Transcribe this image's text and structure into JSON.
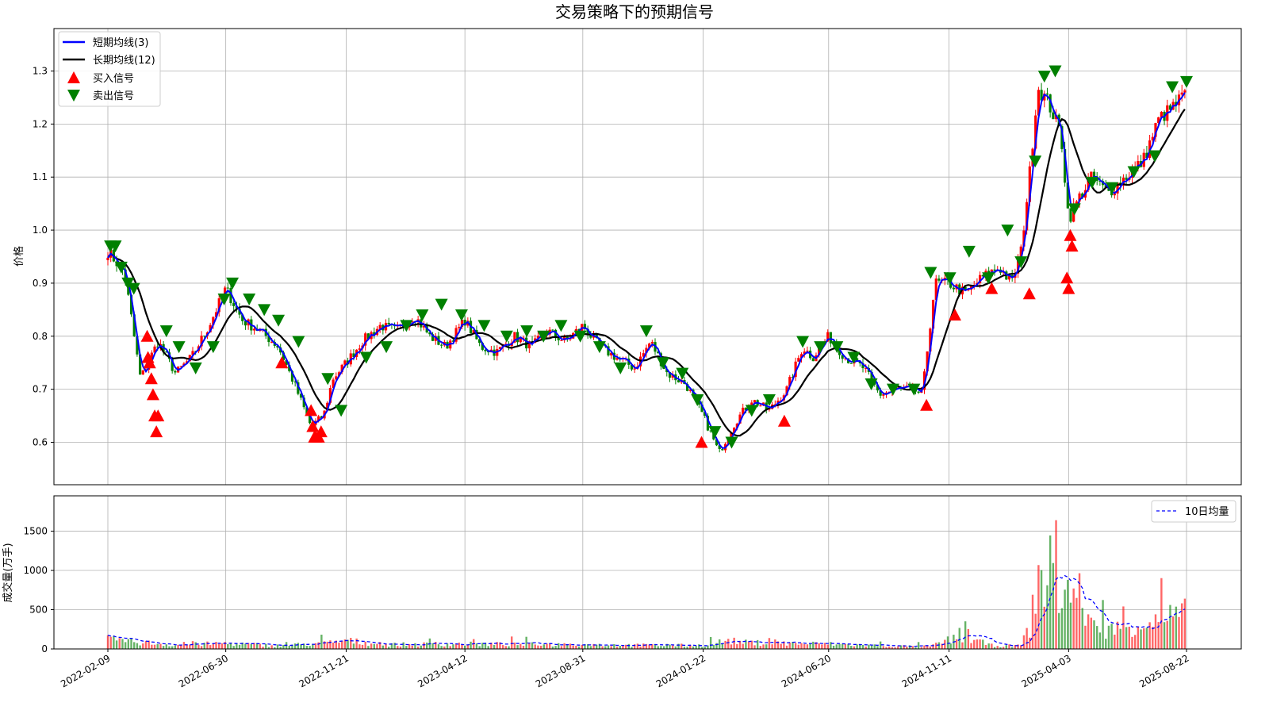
{
  "chart_data": [
    {
      "type": "candlestick",
      "title": "交易策略下的预期信号",
      "xlabel": "",
      "ylabel": "价格",
      "ylim": [
        0.52,
        1.38
      ],
      "yticks": [
        0.6,
        0.7,
        0.8,
        0.9,
        1.0,
        1.1,
        1.2,
        1.3
      ],
      "x_tick_labels": [
        "2022-02-09",
        "2022-06-30",
        "2022-11-21",
        "2023-04-12",
        "2023-08-31",
        "2024-01-22",
        "2024-06-20",
        "2024-11-11",
        "2025-04-03",
        "2025-08-22"
      ],
      "grid": true,
      "legend_position": "top-left",
      "legend": [
        "短期均线(3)",
        "长期均线(12)",
        "买入信号",
        "卖出信号"
      ],
      "colors": {
        "up": "#ff0000",
        "down": "#008000",
        "short_ma": "#0000ff",
        "long_ma": "#000000",
        "buy": "#ff0000",
        "sell": "#008000"
      },
      "series": [
        {
          "name": "短期均线(3)",
          "window": 3
        },
        {
          "name": "长期均线(12)",
          "window": 12
        }
      ],
      "close_series": {
        "x": [
          "2022-02-09",
          "2022-03-01",
          "2022-03-20",
          "2022-04-10",
          "2022-05-01",
          "2022-05-20",
          "2022-06-10",
          "2022-06-30",
          "2022-07-20",
          "2022-08-10",
          "2022-09-01",
          "2022-09-20",
          "2022-10-10",
          "2022-10-25",
          "2022-11-05",
          "2022-11-21",
          "2022-12-10",
          "2023-01-01",
          "2023-01-20",
          "2023-02-10",
          "2023-03-01",
          "2023-03-20",
          "2023-04-12",
          "2023-05-01",
          "2023-05-20",
          "2023-06-10",
          "2023-07-01",
          "2023-07-20",
          "2023-08-10",
          "2023-08-31",
          "2023-09-20",
          "2023-10-10",
          "2023-11-01",
          "2023-11-20",
          "2023-12-10",
          "2024-01-01",
          "2024-01-22",
          "2024-02-10",
          "2024-03-01",
          "2024-03-20",
          "2024-04-10",
          "2024-05-01",
          "2024-05-20",
          "2024-06-01",
          "2024-06-20",
          "2024-07-10",
          "2024-08-01",
          "2024-08-20",
          "2024-09-10",
          "2024-09-28",
          "2024-10-10",
          "2024-10-25",
          "2024-11-11",
          "2024-12-01",
          "2024-12-20",
          "2025-01-10",
          "2025-01-25",
          "2025-02-05",
          "2025-02-15",
          "2025-02-25",
          "2025-03-10",
          "2025-03-25",
          "2025-04-03",
          "2025-04-15",
          "2025-05-01",
          "2025-05-20",
          "2025-06-10",
          "2025-07-01",
          "2025-07-20",
          "2025-08-05",
          "2025-08-22"
        ],
        "close": [
          0.96,
          0.92,
          0.72,
          0.79,
          0.73,
          0.76,
          0.82,
          0.89,
          0.83,
          0.81,
          0.78,
          0.71,
          0.63,
          0.65,
          0.72,
          0.75,
          0.79,
          0.82,
          0.81,
          0.84,
          0.8,
          0.78,
          0.83,
          0.78,
          0.77,
          0.8,
          0.78,
          0.81,
          0.79,
          0.82,
          0.78,
          0.76,
          0.74,
          0.79,
          0.73,
          0.71,
          0.65,
          0.58,
          0.64,
          0.68,
          0.66,
          0.7,
          0.78,
          0.76,
          0.8,
          0.76,
          0.74,
          0.69,
          0.7,
          0.7,
          0.69,
          0.9,
          0.9,
          0.88,
          0.91,
          0.93,
          0.9,
          0.96,
          1.1,
          1.27,
          1.24,
          1.18,
          1.02,
          1.06,
          1.1,
          1.07,
          1.1,
          1.13,
          1.21,
          1.23,
          1.26
        ]
      },
      "buy_signals": {
        "x": [
          "2022-03-28",
          "2022-03-29",
          "2022-03-31",
          "2022-04-02",
          "2022-04-04",
          "2022-04-06",
          "2022-04-08",
          "2022-04-10",
          "2022-09-05",
          "2022-10-10",
          "2022-10-12",
          "2022-10-14",
          "2022-10-16",
          "2022-10-19",
          "2022-10-22",
          "2024-01-20",
          "2024-04-28",
          "2024-10-15",
          "2024-11-18",
          "2025-01-01",
          "2025-02-15",
          "2025-04-01",
          "2025-04-03",
          "2025-04-05",
          "2025-04-07"
        ],
        "y": [
          0.8,
          0.76,
          0.75,
          0.72,
          0.69,
          0.65,
          0.62,
          0.65,
          0.75,
          0.66,
          0.63,
          0.61,
          0.61,
          0.61,
          0.62,
          0.6,
          0.64,
          0.67,
          0.84,
          0.89,
          0.88,
          0.91,
          0.89,
          0.99,
          0.97
        ]
      },
      "sell_signals": {
        "x": [
          "2022-02-12",
          "2022-02-18",
          "2022-02-25",
          "2022-03-05",
          "2022-03-12",
          "2022-04-20",
          "2022-05-05",
          "2022-05-25",
          "2022-06-15",
          "2022-06-28",
          "2022-07-08",
          "2022-07-28",
          "2022-08-15",
          "2022-09-01",
          "2022-09-25",
          "2022-10-30",
          "2022-11-15",
          "2022-12-15",
          "2023-01-08",
          "2023-02-01",
          "2023-02-20",
          "2023-03-15",
          "2023-04-08",
          "2023-05-05",
          "2023-06-01",
          "2023-06-25",
          "2023-07-15",
          "2023-08-05",
          "2023-08-28",
          "2023-09-20",
          "2023-10-15",
          "2023-11-15",
          "2023-12-05",
          "2023-12-28",
          "2024-01-15",
          "2024-02-05",
          "2024-02-25",
          "2024-03-20",
          "2024-04-10",
          "2024-05-20",
          "2024-06-10",
          "2024-06-30",
          "2024-07-20",
          "2024-08-10",
          "2024-09-05",
          "2024-09-30",
          "2024-10-20",
          "2024-11-12",
          "2024-12-05",
          "2024-12-28",
          "2025-01-20",
          "2025-02-05",
          "2025-02-22",
          "2025-03-05",
          "2025-03-18",
          "2025-04-10",
          "2025-05-01",
          "2025-05-25",
          "2025-06-20",
          "2025-07-15",
          "2025-08-05",
          "2025-08-22"
        ],
        "y": [
          0.97,
          0.97,
          0.93,
          0.9,
          0.89,
          0.81,
          0.78,
          0.74,
          0.78,
          0.87,
          0.9,
          0.87,
          0.85,
          0.83,
          0.79,
          0.72,
          0.66,
          0.76,
          0.78,
          0.82,
          0.84,
          0.86,
          0.84,
          0.82,
          0.8,
          0.81,
          0.8,
          0.82,
          0.8,
          0.78,
          0.74,
          0.81,
          0.75,
          0.73,
          0.68,
          0.62,
          0.6,
          0.66,
          0.68,
          0.79,
          0.78,
          0.78,
          0.76,
          0.71,
          0.7,
          0.7,
          0.92,
          0.91,
          0.96,
          0.91,
          1.0,
          0.94,
          1.13,
          1.29,
          1.3,
          1.04,
          1.09,
          1.08,
          1.11,
          1.14,
          1.27,
          1.28
        ]
      }
    },
    {
      "type": "bar",
      "title": "",
      "xlabel": "",
      "ylabel": "成交量(万手)",
      "ylim": [
        0,
        1950
      ],
      "yticks": [
        0,
        500,
        1000,
        1500
      ],
      "grid": true,
      "legend_position": "top-right",
      "legend": [
        "10日均量"
      ],
      "colors": {
        "up": "#ff0000",
        "down": "#008000",
        "ma": "#0000ff"
      },
      "series": [
        {
          "name": "10日均量",
          "window": 10,
          "style": "dashed"
        }
      ],
      "volume_series": {
        "x": [
          "2022-02-09",
          "2022-05-01",
          "2022-06-30",
          "2022-09-01",
          "2022-11-05",
          "2022-11-21",
          "2023-01-01",
          "2023-04-12",
          "2023-08-31",
          "2023-12-01",
          "2024-01-22",
          "2024-02-20",
          "2024-03-10",
          "2024-06-20",
          "2024-09-01",
          "2024-10-20",
          "2024-11-11",
          "2024-12-01",
          "2025-01-01",
          "2025-02-01",
          "2025-02-15",
          "2025-02-25",
          "2025-03-05",
          "2025-03-15",
          "2025-03-25",
          "2025-04-03",
          "2025-04-15",
          "2025-05-01",
          "2025-06-01",
          "2025-07-01",
          "2025-08-01",
          "2025-08-22"
        ],
        "volume": [
          130,
          55,
          80,
          45,
          90,
          120,
          60,
          70,
          60,
          50,
          50,
          120,
          90,
          70,
          40,
          35,
          130,
          160,
          50,
          40,
          250,
          1050,
          900,
          1180,
          700,
          650,
          800,
          300,
          280,
          380,
          430,
          500
        ]
      }
    }
  ]
}
